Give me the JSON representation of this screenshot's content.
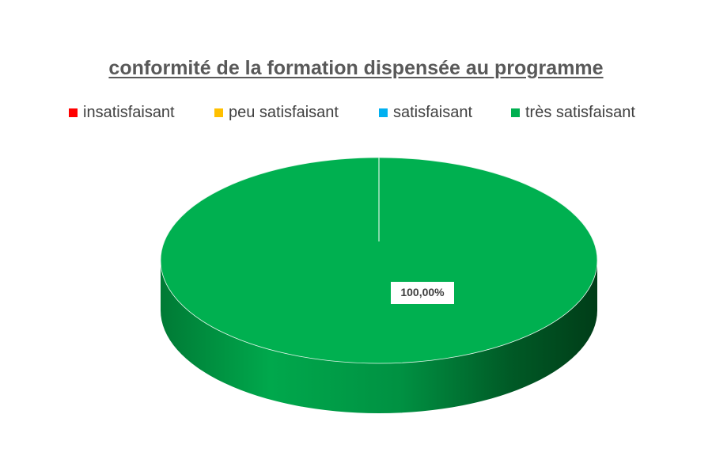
{
  "chart_data": {
    "type": "pie",
    "title": "conformité de la formation dispensée au programme",
    "categories": [
      "insatisfaisant",
      "peu satisfaisant",
      "satisfaisant",
      "très satisfaisant"
    ],
    "values": [
      0,
      0,
      0,
      100
    ],
    "colors": [
      "#ff0000",
      "#ffc000",
      "#00b0f0",
      "#00b050"
    ],
    "data_labels": [
      "",
      "",
      "",
      "100,00%"
    ],
    "legend_position": "top",
    "style": "3d"
  }
}
